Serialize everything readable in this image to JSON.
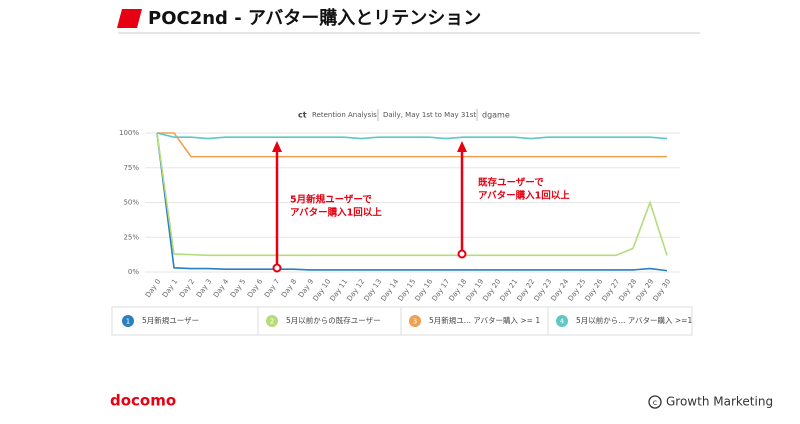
{
  "header": {
    "title": "POC2nd - アバター購入とリテンション"
  },
  "chart_data": {
    "type": "line",
    "subtitle": [
      "Retention Analysis",
      "Daily, May 1st to May 31st",
      "dgame"
    ],
    "categories": [
      "Day 0",
      "Day 1",
      "Day 2",
      "Day 3",
      "Day 4",
      "Day 5",
      "Day 6",
      "Day 7",
      "Day 8",
      "Day 9",
      "Day 10",
      "Day 11",
      "Day 12",
      "Day 13",
      "Day 14",
      "Day 15",
      "Day 16",
      "Day 17",
      "Day 18",
      "Day 19",
      "Day 20",
      "Day 21",
      "Day 22",
      "Day 23",
      "Day 24",
      "Day 25",
      "Day 26",
      "Day 27",
      "Day 28",
      "Day 29",
      "Day 30"
    ],
    "ylim": [
      0,
      100
    ],
    "yticks": [
      {
        "value": 0,
        "label": "0%"
      },
      {
        "value": 25,
        "label": "25%"
      },
      {
        "value": 50,
        "label": "50%"
      },
      {
        "value": 75,
        "label": "75%"
      },
      {
        "value": 100,
        "label": "100%"
      }
    ],
    "grid": true,
    "series": [
      {
        "name": "5月新規ユーザー",
        "marker": "1",
        "color": "#2a7fc1",
        "values": [
          100,
          3,
          2.5,
          2.5,
          2,
          2,
          2,
          2,
          2,
          1.5,
          1.5,
          1.5,
          1.5,
          1.5,
          1.5,
          1.5,
          1.5,
          1.5,
          1.5,
          1.5,
          1.5,
          1.5,
          1.5,
          1.5,
          1.5,
          1.5,
          1.5,
          1.5,
          1.5,
          2.5,
          1
        ]
      },
      {
        "name": "5月以前からの既存ユーザー",
        "marker": "2",
        "color": "#b5dc7a",
        "values": [
          100,
          13,
          12.5,
          12,
          12,
          12,
          12,
          12,
          12,
          12,
          12,
          12,
          12,
          12,
          12,
          12,
          12,
          12,
          12,
          12,
          12,
          12,
          12,
          12,
          12,
          12,
          12,
          12,
          17,
          50,
          12
        ]
      },
      {
        "name": "5月新規ユ...  アバター購入 >= 1",
        "marker": "3",
        "color": "#f0a050",
        "values": [
          100,
          100,
          83,
          83,
          83,
          83,
          83,
          83,
          83,
          83,
          83,
          83,
          83,
          83,
          83,
          83,
          83,
          83,
          83,
          83,
          83,
          83,
          83,
          83,
          83,
          83,
          83,
          83,
          83,
          83,
          83
        ]
      },
      {
        "name": "5月以前から... アバター購入 >=1",
        "marker": "4",
        "color": "#5cc8c8",
        "values": [
          100,
          97,
          97,
          96,
          97,
          97,
          97,
          97,
          97,
          97,
          97,
          97,
          96,
          97,
          97,
          97,
          97,
          96,
          97,
          97,
          97,
          97,
          96,
          97,
          97,
          97,
          97,
          97,
          97,
          97,
          96
        ]
      }
    ],
    "annotations": [
      {
        "lines": [
          "5月新規ユーザーで",
          "アバター購入1回以上"
        ]
      },
      {
        "lines": [
          "既存ユーザーで",
          "アバター購入1回以上"
        ]
      }
    ]
  },
  "footer": {
    "logo": "docomo",
    "credit": "Growth Marketing"
  }
}
